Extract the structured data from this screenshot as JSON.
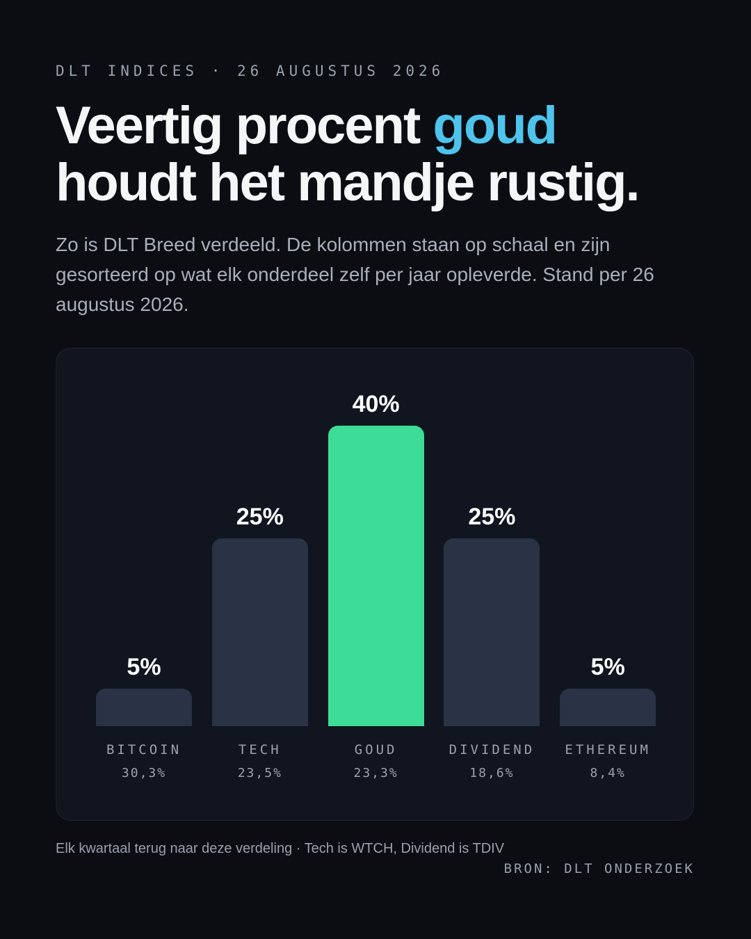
{
  "header": {
    "kicker": "DLT INDICES · 26 AUGUSTUS 2026",
    "title_part1": "Veertig procent ",
    "title_accent": "goud",
    "title_part2": "houdt het mandje rustig.",
    "intro": "Zo is DLT Breed verdeeld. De kolommen staan op schaal en zijn gesorteerd op wat elk onderdeel zelf per jaar opleverde. Stand per 26 augustus 2026."
  },
  "colors": {
    "accent": "#4ec4ec",
    "highlight_bar": "#3ddc97",
    "bar": "#2a3245",
    "background": "#0b0d13",
    "card": "#111520"
  },
  "chart_data": {
    "type": "bar",
    "categories": [
      "BITCOIN",
      "TECH",
      "GOUD",
      "DIVIDEND",
      "ETHEREUM"
    ],
    "values": [
      5,
      25,
      40,
      25,
      5
    ],
    "value_labels": [
      "5%",
      "25%",
      "40%",
      "25%",
      "5%"
    ],
    "subvalues": [
      "30,3%",
      "23,5%",
      "23,3%",
      "18,6%",
      "8,4%"
    ],
    "highlight": "GOUD",
    "ylim": [
      0,
      40
    ],
    "grid": false,
    "title": "",
    "xlabel": "",
    "ylabel": ""
  },
  "footer": {
    "note": "Elk kwartaal terug naar deze verdeling · Tech is WTCH, Dividend is TDIV",
    "source": "BRON: DLT ONDERZOEK"
  }
}
